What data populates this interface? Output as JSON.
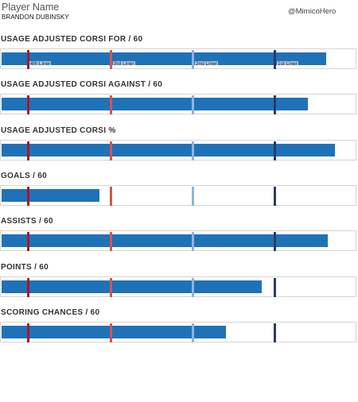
{
  "header": {
    "title": "Player Name",
    "player": "BRANDON DUBINSKY",
    "handle": "@MimicoHero"
  },
  "colors": {
    "bar": "#1f72b8",
    "tier_4th": "#a01b2a",
    "tier_3rd": "#d9534f",
    "tier_2nd": "#8fb3df",
    "tier_1st": "#2b3a67"
  },
  "chart_data": {
    "type": "bar",
    "orientation": "horizontal",
    "title": "Player Name",
    "subtitle": "BRANDON DUBINSKY",
    "grid": false,
    "x_scale": "percentile within player usage tiers",
    "xlim": [
      0,
      100
    ],
    "reference_lines": [
      {
        "label": "4th Liner",
        "position": 7.6,
        "color": "#a01b2a"
      },
      {
        "label": "3rd Liner",
        "position": 31,
        "color": "#d9534f"
      },
      {
        "label": "2nd Liner",
        "position": 54,
        "color": "#8fb3df"
      },
      {
        "label": "1st Liner",
        "position": 77,
        "color": "#2b3a67"
      }
    ],
    "categories": [
      "USAGE ADJUSTED CORSI FOR / 60",
      "USAGE ADJUSTED CORSI AGAINST / 60",
      "USAGE ADJUSTED CORSI %",
      "GOALS / 60",
      "ASSISTS / 60",
      "POINTS / 60",
      "SCORING CHANCES / 60"
    ],
    "values": [
      91,
      86,
      93.5,
      27.5,
      91.5,
      73,
      63
    ]
  }
}
